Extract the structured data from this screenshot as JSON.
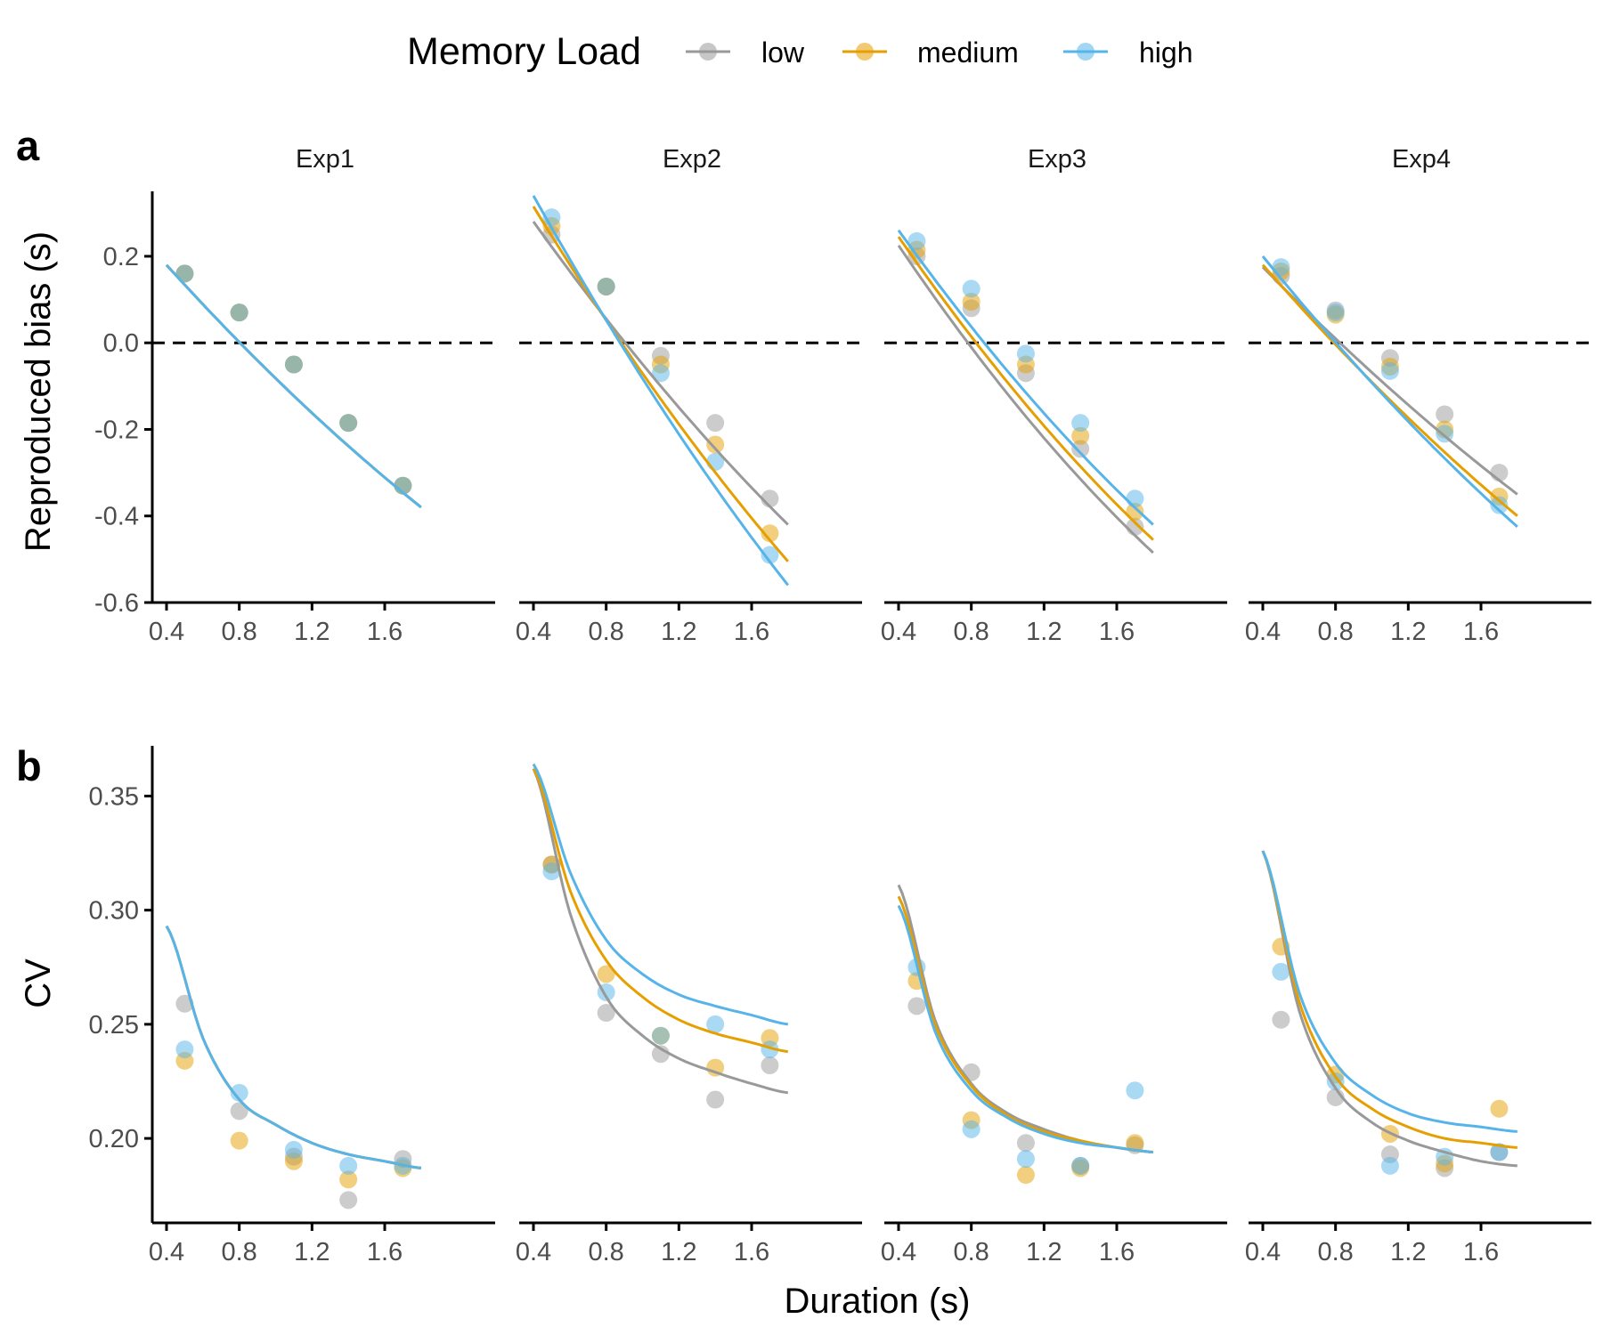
{
  "colors": {
    "low": "#999999",
    "medium": "#E69F00",
    "high": "#56B4E9",
    "axis": "#000000",
    "ref_line": "#000000"
  },
  "legend": {
    "title": "Memory Load",
    "placement": "top",
    "items": [
      {
        "key": "low",
        "label": "low"
      },
      {
        "key": "medium",
        "label": "medium"
      },
      {
        "key": "high",
        "label": "high"
      }
    ]
  },
  "panels": [
    "Exp1",
    "Exp2",
    "Exp3",
    "Exp4"
  ],
  "xlabel": "Duration (s)",
  "xticks": [
    0.4,
    0.8,
    1.2,
    1.6
  ],
  "xlim": [
    0.4,
    1.8
  ],
  "chart_data": [
    {
      "type": "scatter",
      "tag": "a",
      "ylabel": "Reproduced bias (s)",
      "ylim": [
        -0.6,
        0.35
      ],
      "yticks": [
        0.2,
        0.0,
        -0.2,
        -0.4,
        -0.6
      ],
      "ytick_labels": [
        "0.2",
        "0.0",
        "-0.2",
        "-0.4",
        "-0.6"
      ],
      "reference_line_y": 0,
      "x": [
        0.5,
        0.8,
        1.1,
        1.4,
        1.7
      ],
      "fit_x_range": [
        0.4,
        1.8
      ],
      "facets": [
        {
          "name": "Exp1",
          "series": [
            {
              "key": "low",
              "values": [
                0.16,
                0.07,
                -0.05,
                -0.185,
                -0.33
              ],
              "fit": [
                0.18,
                -0.09,
                0.0,
                -0.38
              ]
            },
            {
              "key": "medium",
              "values": [
                0.16,
                0.07,
                -0.05,
                -0.185,
                -0.33
              ],
              "fit": [
                0.18,
                -0.09,
                0.0,
                -0.38
              ]
            },
            {
              "key": "high",
              "values": [
                0.16,
                0.07,
                -0.05,
                -0.185,
                -0.33
              ],
              "fit": [
                0.18,
                -0.09,
                0.0,
                -0.38
              ]
            }
          ]
        },
        {
          "name": "Exp2",
          "series": [
            {
              "key": "low",
              "values": [
                0.25,
                0.13,
                -0.03,
                -0.185,
                -0.36
              ],
              "fit": [
                0.28,
                -0.12,
                -0.02,
                -0.42
              ]
            },
            {
              "key": "medium",
              "values": [
                0.27,
                0.13,
                -0.05,
                -0.235,
                -0.44
              ],
              "fit": [
                0.315,
                -0.14,
                -0.05,
                -0.505
              ]
            },
            {
              "key": "high",
              "values": [
                0.29,
                0.13,
                -0.07,
                -0.275,
                -0.49
              ],
              "fit": [
                0.34,
                -0.15,
                -0.07,
                -0.56
              ]
            }
          ]
        },
        {
          "name": "Exp3",
          "series": [
            {
              "key": "low",
              "values": [
                0.2,
                0.08,
                -0.07,
                -0.245,
                -0.425
              ],
              "fit": [
                0.225,
                -0.16,
                -0.075,
                -0.485
              ]
            },
            {
              "key": "medium",
              "values": [
                0.215,
                0.095,
                -0.05,
                -0.215,
                -0.39
              ],
              "fit": [
                0.245,
                -0.15,
                -0.06,
                -0.455
              ]
            },
            {
              "key": "high",
              "values": [
                0.235,
                0.125,
                -0.025,
                -0.185,
                -0.36
              ],
              "fit": [
                0.26,
                -0.14,
                -0.035,
                -0.42
              ]
            }
          ]
        },
        {
          "name": "Exp4",
          "series": [
            {
              "key": "low",
              "values": [
                0.155,
                0.075,
                -0.035,
                -0.165,
                -0.3
              ],
              "fit": [
                0.175,
                -0.075,
                -0.025,
                -0.35
              ]
            },
            {
              "key": "medium",
              "values": [
                0.165,
                0.065,
                -0.055,
                -0.2,
                -0.355
              ],
              "fit": [
                0.18,
                -0.09,
                -0.05,
                -0.4
              ]
            },
            {
              "key": "high",
              "values": [
                0.175,
                0.07,
                -0.065,
                -0.21,
                -0.375
              ],
              "fit": [
                0.2,
                -0.1,
                -0.05,
                -0.425
              ]
            }
          ]
        }
      ]
    },
    {
      "type": "scatter",
      "tag": "b",
      "ylabel": "CV",
      "ylim": [
        0.163,
        0.372
      ],
      "yticks": [
        0.35,
        0.3,
        0.25,
        0.2
      ],
      "ytick_labels": [
        "0.35",
        "0.30",
        "0.25",
        "0.20"
      ],
      "x": [
        0.5,
        0.8,
        1.1,
        1.4,
        1.7
      ],
      "facets": [
        {
          "name": "Exp1",
          "series": [
            {
              "key": "low",
              "values": [
                0.259,
                0.212,
                0.192,
                0.173,
                0.191
              ]
            },
            {
              "key": "medium",
              "values": [
                0.234,
                0.199,
                0.19,
                0.182,
                0.187
              ]
            },
            {
              "key": "high",
              "values": [
                0.239,
                0.22,
                0.195,
                0.188,
                0.188
              ]
            }
          ]
        },
        {
          "name": "Exp2",
          "series": [
            {
              "key": "low",
              "values": [
                0.32,
                0.255,
                0.237,
                0.217,
                0.232
              ]
            },
            {
              "key": "medium",
              "values": [
                0.32,
                0.272,
                0.245,
                0.231,
                0.244
              ]
            },
            {
              "key": "high",
              "values": [
                0.317,
                0.264,
                0.245,
                0.25,
                0.239
              ]
            }
          ]
        },
        {
          "name": "Exp3",
          "series": [
            {
              "key": "low",
              "values": [
                0.258,
                0.229,
                0.198,
                0.188,
                0.197
              ]
            },
            {
              "key": "medium",
              "values": [
                0.269,
                0.208,
                0.184,
                0.187,
                0.198
              ]
            },
            {
              "key": "high",
              "values": [
                0.275,
                0.204,
                0.191,
                0.188,
                0.221
              ]
            }
          ]
        },
        {
          "name": "Exp4",
          "series": [
            {
              "key": "low",
              "values": [
                0.252,
                0.218,
                0.193,
                0.187,
                0.194
              ]
            },
            {
              "key": "medium",
              "values": [
                0.284,
                0.228,
                0.202,
                0.189,
                0.213
              ]
            },
            {
              "key": "high",
              "values": [
                0.273,
                0.225,
                0.188,
                0.192,
                0.194
              ]
            }
          ]
        }
      ],
      "fits": [
        {
          "name": "Exp1",
          "curves": [
            {
              "key": "low",
              "values": [
                0.293,
                0.244,
                0.217,
                0.206,
                0.198,
                0.193,
                0.19,
                0.187
              ]
            },
            {
              "key": "medium",
              "values": [
                0.293,
                0.244,
                0.217,
                0.206,
                0.198,
                0.193,
                0.19,
                0.187
              ]
            },
            {
              "key": "high",
              "values": [
                0.293,
                0.244,
                0.217,
                0.206,
                0.198,
                0.193,
                0.19,
                0.187
              ]
            }
          ]
        },
        {
          "name": "Exp2",
          "curves": [
            {
              "key": "low",
              "values": [
                0.362,
                0.299,
                0.262,
                0.245,
                0.235,
                0.229,
                0.224,
                0.22
              ]
            },
            {
              "key": "medium",
              "values": [
                0.362,
                0.309,
                0.278,
                0.262,
                0.252,
                0.246,
                0.242,
                0.238
              ]
            },
            {
              "key": "high",
              "values": [
                0.364,
                0.317,
                0.287,
                0.272,
                0.263,
                0.258,
                0.254,
                0.25
              ]
            }
          ]
        },
        {
          "name": "Exp3",
          "curves": [
            {
              "key": "low",
              "values": [
                0.311,
                0.252,
                0.224,
                0.211,
                0.204,
                0.199,
                0.196,
                0.194
              ]
            },
            {
              "key": "medium",
              "values": [
                0.306,
                0.25,
                0.223,
                0.21,
                0.203,
                0.199,
                0.196,
                0.194
              ]
            },
            {
              "key": "high",
              "values": [
                0.302,
                0.247,
                0.221,
                0.209,
                0.202,
                0.198,
                0.196,
                0.194
              ]
            }
          ]
        },
        {
          "name": "Exp4",
          "curves": [
            {
              "key": "low",
              "values": [
                0.326,
                0.256,
                0.222,
                0.207,
                0.199,
                0.194,
                0.19,
                0.188
              ]
            },
            {
              "key": "medium",
              "values": [
                0.326,
                0.26,
                0.227,
                0.213,
                0.205,
                0.2,
                0.198,
                0.196
              ]
            },
            {
              "key": "high",
              "values": [
                0.326,
                0.264,
                0.233,
                0.219,
                0.211,
                0.207,
                0.205,
                0.203
              ]
            }
          ]
        }
      ]
    }
  ]
}
